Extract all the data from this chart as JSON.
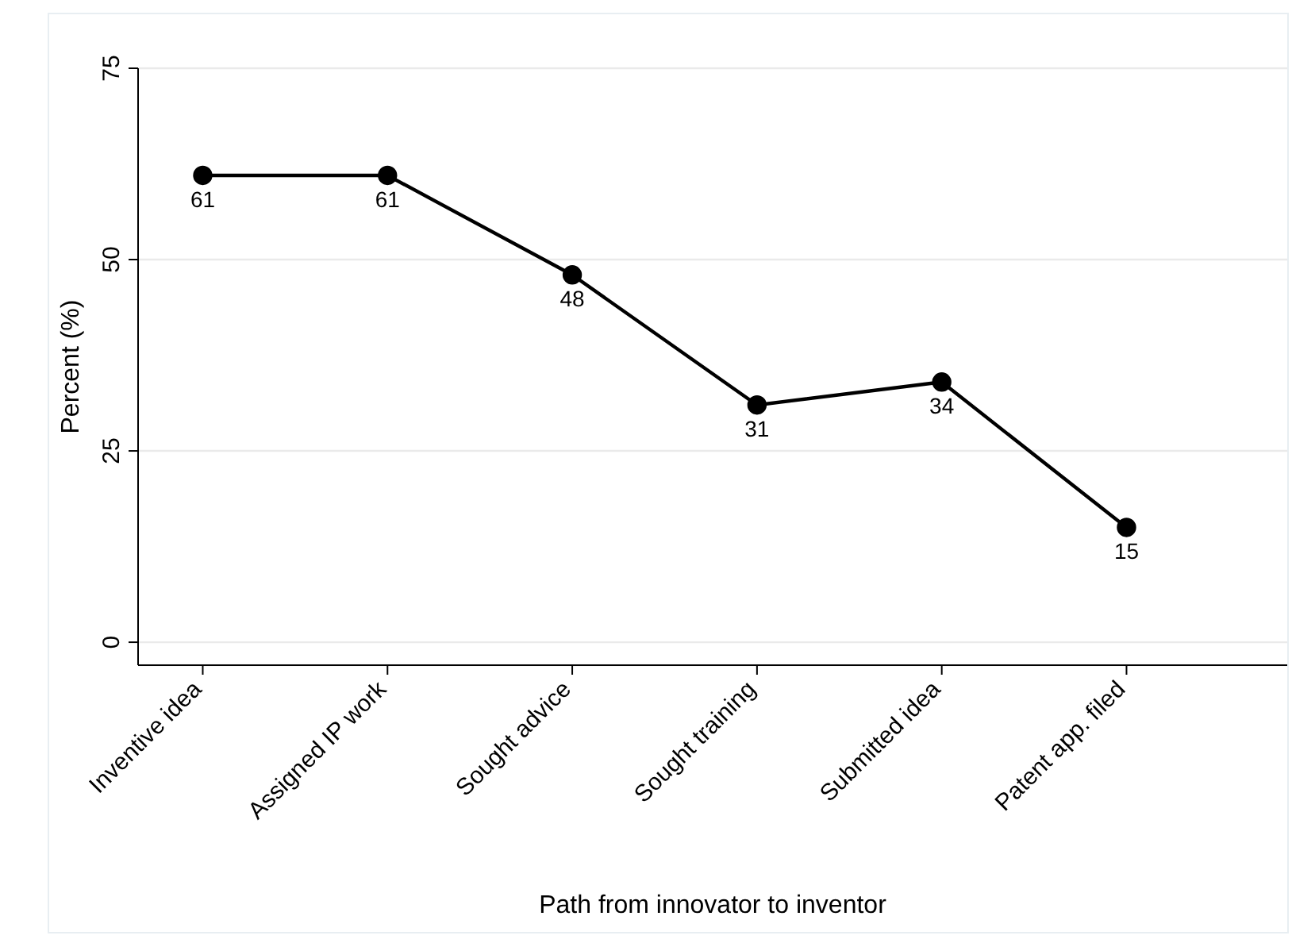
{
  "chart_data": {
    "type": "line",
    "xlabel": "Path from innovator to inventor",
    "ylabel": "Percent (%)",
    "categories": [
      "Inventive idea",
      "Assigned IP work",
      "Sought advice",
      "Sought training",
      "Submitted idea",
      "Patent app. filed"
    ],
    "series": [
      {
        "color": "#000000",
        "values": [
          61,
          61,
          48,
          31,
          34,
          15
        ]
      }
    ],
    "ylim": [
      -3,
      75
    ],
    "yticks": [
      0,
      25,
      50,
      75
    ],
    "grid": "y",
    "marker": "circle",
    "line_style": "solid",
    "data_labels": true
  }
}
